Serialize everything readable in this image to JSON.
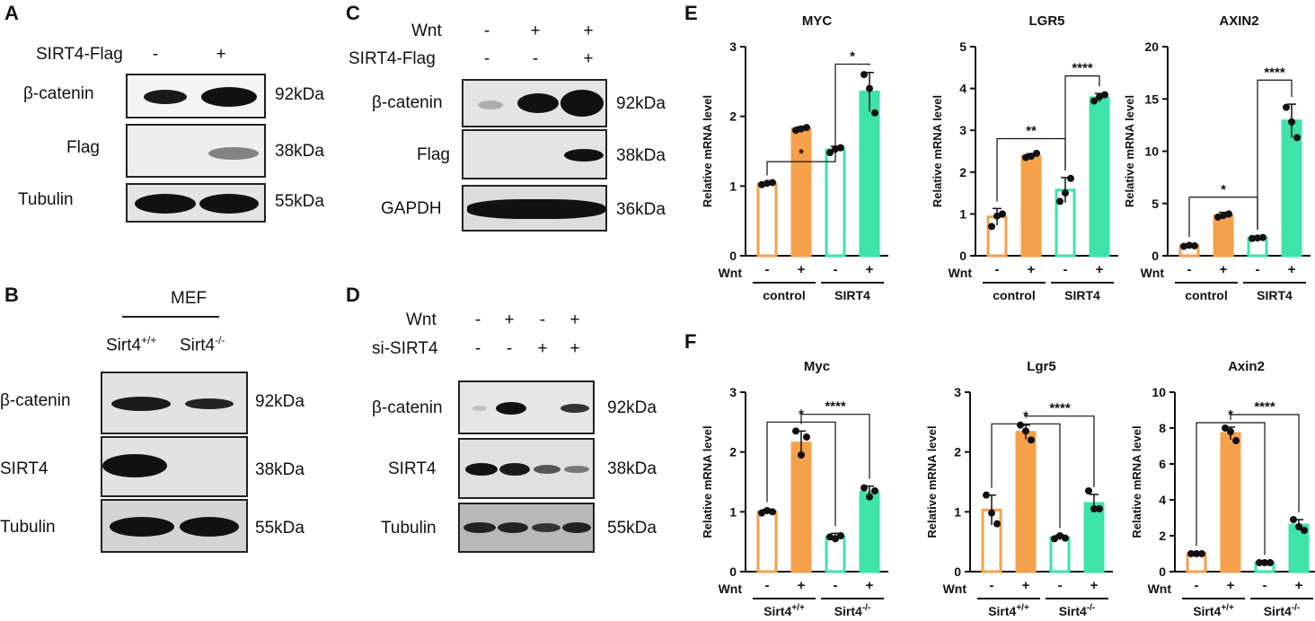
{
  "panel_A": {
    "letter": "A",
    "treatment_label": "SIRT4-Flag",
    "signs": [
      "-",
      "+"
    ],
    "rows": [
      {
        "label": "β-catenin",
        "size": "92kDa"
      },
      {
        "label": "Flag",
        "size": "38kDa"
      },
      {
        "label": "Tubulin",
        "size": "55kDa"
      }
    ]
  },
  "panel_B": {
    "letter": "B",
    "group_label": "MEF",
    "genotypes": [
      "Sirt4",
      "Sirt4"
    ],
    "genotype_sups": [
      "+/+",
      "-/-"
    ],
    "rows": [
      {
        "label": "β-catenin",
        "size": "92kDa"
      },
      {
        "label": "SIRT4",
        "size": "38kDa"
      },
      {
        "label": "Tubulin",
        "size": "55kDa"
      }
    ]
  },
  "panel_C": {
    "letter": "C",
    "treatments": [
      {
        "label": "Wnt",
        "signs": [
          "-",
          "+",
          "+"
        ]
      },
      {
        "label": "SIRT4-Flag",
        "signs": [
          "-",
          "-",
          "+"
        ]
      }
    ],
    "rows": [
      {
        "label": "β-catenin",
        "size": "92kDa"
      },
      {
        "label": "Flag",
        "size": "38kDa"
      },
      {
        "label": "GAPDH",
        "size": "36kDa"
      }
    ]
  },
  "panel_D": {
    "letter": "D",
    "treatments": [
      {
        "label": "Wnt",
        "signs": [
          "-",
          "+",
          "-",
          "+"
        ]
      },
      {
        "label": "si-SIRT4",
        "signs": [
          "-",
          "-",
          "+",
          "+"
        ]
      }
    ],
    "rows": [
      {
        "label": "β-catenin",
        "size": "92kDa"
      },
      {
        "label": "SIRT4",
        "size": "38kDa"
      },
      {
        "label": "Tubulin",
        "size": "55kDa"
      }
    ]
  },
  "panel_E_letter": "E",
  "panel_F_letter": "F",
  "colors": {
    "orange": "#F5A04B",
    "green": "#3EE3A8",
    "dark": "#111111"
  },
  "chart_data": [
    {
      "panel": "E",
      "type": "bar",
      "title": "MYC",
      "ylabel": "Relative mRNA level",
      "ylim": [
        0,
        3
      ],
      "yticks": [
        0,
        1,
        2,
        3
      ],
      "values": [
        1.03,
        1.82,
        1.52,
        2.35
      ],
      "points": [
        [
          1.02,
          1.04,
          1.05
        ],
        [
          1.8,
          1.82,
          1.84
        ],
        [
          1.48,
          1.53,
          1.55
        ],
        [
          2.6,
          2.4,
          2.05
        ]
      ],
      "err": [
        0.02,
        0.03,
        0.05,
        0.28
      ],
      "wnt_label": "Wnt",
      "wnt_signs": [
        "-",
        "+",
        "-",
        "+"
      ],
      "groups": [
        {
          "label": "control"
        },
        {
          "label": "SIRT4"
        }
      ],
      "brackets": [
        {
          "a": 0,
          "b": 2,
          "y": 1.35,
          "label": "*"
        },
        {
          "a": 2,
          "b": 3,
          "y": 2.75,
          "label": "*"
        }
      ]
    },
    {
      "panel": "E",
      "type": "bar",
      "title": "LGR5",
      "ylabel": "Relative mRNA level",
      "ylim": [
        0,
        5
      ],
      "yticks": [
        0,
        1,
        2,
        3,
        4,
        5
      ],
      "values": [
        0.93,
        2.38,
        1.57,
        3.78
      ],
      "points": [
        [
          0.7,
          0.95,
          1.0
        ],
        [
          2.35,
          2.38,
          2.45
        ],
        [
          1.3,
          1.5,
          1.85
        ],
        [
          3.7,
          3.8,
          3.85
        ]
      ],
      "err": [
        0.2,
        0.06,
        0.3,
        0.1
      ],
      "wnt_label": "Wnt",
      "wnt_signs": [
        "-",
        "+",
        "-",
        "+"
      ],
      "groups": [
        {
          "label": "control"
        },
        {
          "label": "SIRT4"
        }
      ],
      "brackets": [
        {
          "a": 0,
          "b": 2,
          "y": 2.8,
          "label": "**"
        },
        {
          "a": 2,
          "b": 3,
          "y": 4.3,
          "label": "****"
        }
      ]
    },
    {
      "panel": "E",
      "type": "bar",
      "title": "AXIN2",
      "ylabel": "Relative mRNA level",
      "ylim": [
        0,
        20
      ],
      "yticks": [
        0,
        5,
        10,
        15,
        20
      ],
      "values": [
        0.95,
        3.85,
        1.7,
        12.9
      ],
      "points": [
        [
          0.9,
          1.0,
          0.95
        ],
        [
          3.7,
          3.85,
          4.0
        ],
        [
          1.65,
          1.7,
          1.75
        ],
        [
          14.2,
          12.8,
          11.3
        ]
      ],
      "err": [
        0.15,
        0.3,
        0.1,
        1.6
      ],
      "wnt_label": "Wnt",
      "wnt_signs": [
        "-",
        "+",
        "-",
        "+"
      ],
      "groups": [
        {
          "label": "control"
        },
        {
          "label": "SIRT4"
        }
      ],
      "brackets": [
        {
          "a": 0,
          "b": 2,
          "y": 5.6,
          "label": "*"
        },
        {
          "a": 2,
          "b": 3,
          "y": 16.8,
          "label": "****"
        }
      ]
    },
    {
      "panel": "F",
      "type": "bar",
      "title": "Myc",
      "ylabel": "Relative mRNA level",
      "ylim": [
        0,
        3
      ],
      "yticks": [
        0,
        1,
        2,
        3
      ],
      "values": [
        1.0,
        2.15,
        0.58,
        1.33
      ],
      "points": [
        [
          0.98,
          1.02,
          1.0
        ],
        [
          2.35,
          1.95,
          2.25
        ],
        [
          0.58,
          0.55,
          0.6
        ],
        [
          1.4,
          1.25,
          1.35
        ]
      ],
      "err": [
        0.04,
        0.2,
        0.06,
        0.1
      ],
      "wnt_label": "Wnt",
      "wnt_signs": [
        "-",
        "+",
        "-",
        "+"
      ],
      "groups": [
        {
          "label": "Sirt4",
          "sup": "+/+"
        },
        {
          "label": "Sirt4",
          "sup": "-/-"
        }
      ],
      "brackets": [
        {
          "a": 0,
          "b": 2,
          "y": 2.5,
          "label": "*"
        },
        {
          "a": 1,
          "b": 3,
          "y": 2.63,
          "label": "****"
        }
      ]
    },
    {
      "panel": "F",
      "type": "bar",
      "title": "Lgr5",
      "ylabel": "Relative mRNA level",
      "ylim": [
        0,
        3
      ],
      "yticks": [
        0,
        1,
        2,
        3
      ],
      "values": [
        1.03,
        2.33,
        0.57,
        1.14
      ],
      "points": [
        [
          1.28,
          0.98,
          0.8
        ],
        [
          2.45,
          2.35,
          2.2
        ],
        [
          0.55,
          0.6,
          0.56
        ],
        [
          1.35,
          1.05,
          1.05
        ]
      ],
      "err": [
        0.25,
        0.12,
        0.04,
        0.15
      ],
      "wnt_label": "Wnt",
      "wnt_signs": [
        "-",
        "+",
        "-",
        "+"
      ],
      "groups": [
        {
          "label": "Sirt4",
          "sup": "+/+"
        },
        {
          "label": "Sirt4",
          "sup": "-/-"
        }
      ],
      "brackets": [
        {
          "a": 0,
          "b": 2,
          "y": 2.47,
          "label": "*"
        },
        {
          "a": 1,
          "b": 3,
          "y": 2.6,
          "label": "****"
        }
      ]
    },
    {
      "panel": "F",
      "type": "bar",
      "title": "Axin2",
      "ylabel": "Relative mRNA level",
      "ylim": [
        0,
        10
      ],
      "yticks": [
        0,
        2,
        4,
        6,
        8,
        10
      ],
      "values": [
        1.0,
        7.7,
        0.5,
        2.6
      ],
      "points": [
        [
          1.0,
          1.0,
          1.0
        ],
        [
          8.0,
          7.8,
          7.3
        ],
        [
          0.5,
          0.5,
          0.5
        ],
        [
          2.9,
          2.5,
          2.3
        ]
      ],
      "err": [
        0.04,
        0.35,
        0.03,
        0.3
      ],
      "wnt_label": "Wnt",
      "wnt_signs": [
        "-",
        "+",
        "-",
        "+"
      ],
      "groups": [
        {
          "label": "Sirt4",
          "sup": "+/+"
        },
        {
          "label": "Sirt4",
          "sup": "-/-"
        }
      ],
      "brackets": [
        {
          "a": 0,
          "b": 2,
          "y": 8.3,
          "label": "*"
        },
        {
          "a": 1,
          "b": 3,
          "y": 8.75,
          "label": "****"
        }
      ]
    }
  ]
}
